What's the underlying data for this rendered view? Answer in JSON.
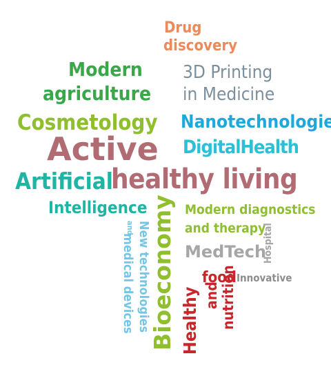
{
  "colors": {
    "orange": "#ec8a59",
    "green": "#3aa84a",
    "lime": "#8fbe2e",
    "slate": "#7b8f9c",
    "blue": "#1da9dc",
    "cyan": "#2cc0d6",
    "mauve": "#b06c72",
    "teal": "#1fb4a4",
    "gray": "#a6a6a6",
    "darkgray": "#8c8c8c",
    "red": "#c9262c",
    "skyblue": "#74c6e6"
  },
  "words": {
    "drug": "Drug",
    "discovery": "discovery",
    "modern": "Modern",
    "agriculture": "agriculture",
    "printing_3d": "3D Printing",
    "in_medicine": "in Medicine",
    "cosmetology": "Cosmetology",
    "nanotechnologies": "Nanotechnologies",
    "digital_health": "DigitalHealth",
    "active": "Active",
    "artificial": "Artificial",
    "healthy_living": "healthy living",
    "intelligence": "Intelligence",
    "modern_diagnostics": "Modern diagnostics",
    "and_therapy": "and therapy",
    "medtech": "MedTech",
    "hospital": "Hospital",
    "new_technologies": "New technologies",
    "and": "and",
    "medical_devices": "medical devices",
    "bioeconomy": "Bioeconomy",
    "healthy": "Healthy",
    "food": "food",
    "and2": "and",
    "nutrition": "nutrition",
    "innovative": "Innovative"
  }
}
